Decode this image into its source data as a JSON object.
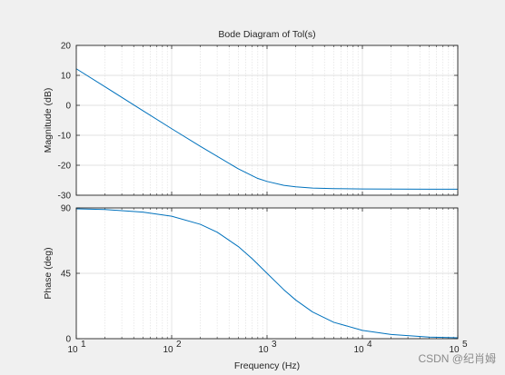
{
  "chart_data": {
    "type": "line",
    "title": "Bode Diagram of Tol(s)",
    "xlabel": "Frequency  (Hz)",
    "x_scale": "log",
    "xlim": [
      10,
      100000
    ],
    "x_ticks": [
      {
        "value": 10,
        "base": "10",
        "exp": "1"
      },
      {
        "value": 100,
        "base": "10",
        "exp": "2"
      },
      {
        "value": 1000,
        "base": "10",
        "exp": "3"
      },
      {
        "value": 10000,
        "base": "10",
        "exp": "4"
      },
      {
        "value": 100000,
        "base": "10",
        "exp": "5"
      }
    ],
    "grid": true,
    "line_color": "#0072bd",
    "panels": [
      {
        "ylabel": "Magnitude (dB)",
        "ylim": [
          -30,
          20
        ],
        "yticks": [
          20,
          10,
          0,
          -10,
          -20,
          -30
        ],
        "series": [
          {
            "x": [
              10,
              20,
              50,
              100,
              200,
              500,
              800,
              1000,
              1500,
              2000,
              3000,
              5000,
              10000,
              50000,
              100000
            ],
            "y": [
              12.2,
              6.2,
              -1.8,
              -7.8,
              -13.7,
              -21.2,
              -24.4,
              -25.4,
              -26.7,
              -27.2,
              -27.6,
              -27.8,
              -27.9,
              -28.0,
              -28.0
            ]
          }
        ]
      },
      {
        "ylabel": "Phase (deg)",
        "ylim": [
          0,
          90
        ],
        "yticks": [
          90,
          45,
          0
        ],
        "series": [
          {
            "x": [
              10,
              20,
              50,
              100,
              200,
              300,
              500,
              700,
              1000,
              1500,
              2000,
              3000,
              5000,
              10000,
              20000,
              50000,
              100000
            ],
            "y": [
              89.4,
              88.9,
              87.1,
              84.3,
              78.7,
              73.3,
              63.4,
              55.0,
              45.0,
              33.7,
              26.6,
              18.4,
              11.3,
              5.7,
              2.9,
              1.1,
              0.6
            ]
          }
        ]
      }
    ]
  },
  "watermark": "CSDN @纪肖姆"
}
